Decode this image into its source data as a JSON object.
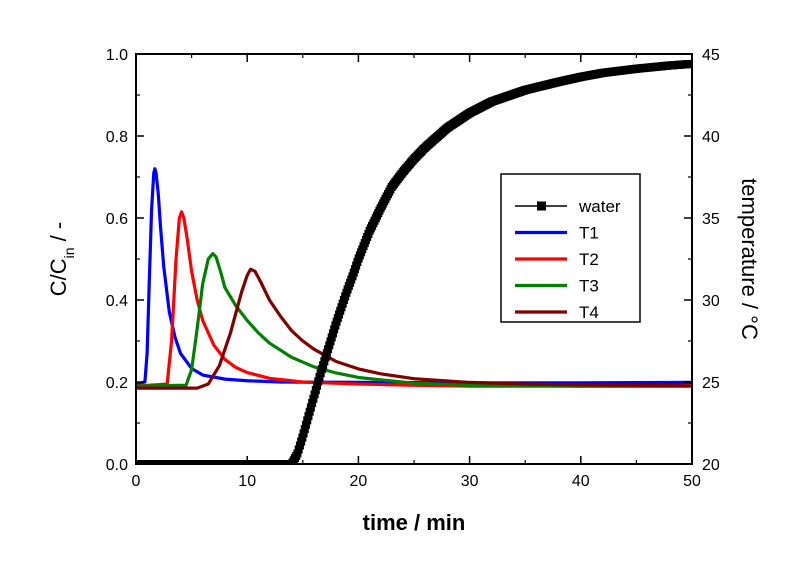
{
  "chart_data": {
    "type": "line",
    "xlabel": "time / min",
    "ylabel": {
      "main": "C/C",
      "sub": "in",
      "suffix": " / -"
    },
    "y2label": "temperature / °C",
    "xlim": [
      0,
      50
    ],
    "ylim": [
      0,
      1.0
    ],
    "y2lim": [
      20,
      45
    ],
    "x_ticks": [
      "0",
      "10",
      "20",
      "30",
      "40",
      "50"
    ],
    "y_ticks": [
      "0.0",
      "0.2",
      "0.4",
      "0.6",
      "0.8",
      "1.0"
    ],
    "y2_ticks": [
      "20",
      "25",
      "30",
      "35",
      "40",
      "45"
    ],
    "grid": false,
    "legend_position": "center-right",
    "series": [
      {
        "name": "water",
        "axis": "right",
        "color": "#000000",
        "marker": "square",
        "x": [
          0,
          14,
          14.5,
          15,
          15.5,
          16,
          16.5,
          17,
          17.5,
          18,
          18.5,
          19,
          19.5,
          20,
          21,
          22,
          23,
          24,
          25,
          26,
          28,
          30,
          32,
          35,
          38,
          40,
          42,
          45,
          48,
          50
        ],
        "y": [
          20,
          20,
          20.6,
          21.7,
          22.9,
          24.1,
          25.3,
          26.4,
          27.5,
          28.6,
          29.6,
          30.6,
          31.5,
          32.5,
          34.2,
          35.6,
          36.9,
          37.8,
          38.6,
          39.3,
          40.5,
          41.4,
          42.1,
          42.8,
          43.3,
          43.6,
          43.85,
          44.1,
          44.3,
          44.4
        ]
      },
      {
        "name": "T1",
        "axis": "left",
        "color": "#0000ff",
        "x": [
          0,
          0.8,
          1.0,
          1.2,
          1.4,
          1.6,
          1.7,
          1.8,
          2.0,
          2.2,
          2.5,
          3.0,
          3.5,
          4.0,
          5.0,
          6.0,
          8.0,
          10,
          13,
          20,
          30,
          40,
          50
        ],
        "y": [
          0.195,
          0.2,
          0.27,
          0.45,
          0.62,
          0.71,
          0.72,
          0.71,
          0.66,
          0.58,
          0.48,
          0.37,
          0.31,
          0.27,
          0.233,
          0.217,
          0.207,
          0.203,
          0.2,
          0.199,
          0.198,
          0.198,
          0.199
        ]
      },
      {
        "name": "T2",
        "axis": "left",
        "color": "#ff0000",
        "x": [
          0,
          2.8,
          3.2,
          3.6,
          3.9,
          4.1,
          4.3,
          4.6,
          5.0,
          5.5,
          6.0,
          7.0,
          8.0,
          9.0,
          10,
          12,
          15,
          20,
          25,
          30,
          40,
          50
        ],
        "y": [
          0.19,
          0.195,
          0.3,
          0.5,
          0.6,
          0.615,
          0.6,
          0.55,
          0.47,
          0.4,
          0.35,
          0.29,
          0.255,
          0.235,
          0.223,
          0.209,
          0.2,
          0.195,
          0.192,
          0.19,
          0.19,
          0.19
        ]
      },
      {
        "name": "T3",
        "axis": "left",
        "color": "#008000",
        "x": [
          0,
          4.5,
          5.0,
          5.5,
          6.0,
          6.5,
          6.9,
          7.2,
          7.6,
          8.0,
          9.0,
          10,
          11,
          12,
          14,
          16,
          18,
          20,
          25,
          30,
          40,
          50
        ],
        "y": [
          0.19,
          0.192,
          0.23,
          0.33,
          0.44,
          0.5,
          0.513,
          0.505,
          0.47,
          0.43,
          0.385,
          0.35,
          0.32,
          0.295,
          0.26,
          0.237,
          0.222,
          0.211,
          0.197,
          0.192,
          0.19,
          0.19
        ]
      },
      {
        "name": "T4",
        "axis": "left",
        "color": "#800000",
        "x": [
          0,
          5.5,
          6.5,
          7.5,
          8.5,
          9.5,
          10.0,
          10.3,
          10.7,
          11.2,
          12,
          13,
          14,
          15,
          16,
          18,
          20,
          22,
          25,
          30,
          35,
          40,
          45,
          50
        ],
        "y": [
          0.185,
          0.185,
          0.195,
          0.24,
          0.32,
          0.42,
          0.46,
          0.475,
          0.47,
          0.445,
          0.4,
          0.36,
          0.325,
          0.3,
          0.28,
          0.25,
          0.232,
          0.22,
          0.208,
          0.199,
          0.195,
          0.193,
          0.192,
          0.191
        ]
      }
    ]
  }
}
